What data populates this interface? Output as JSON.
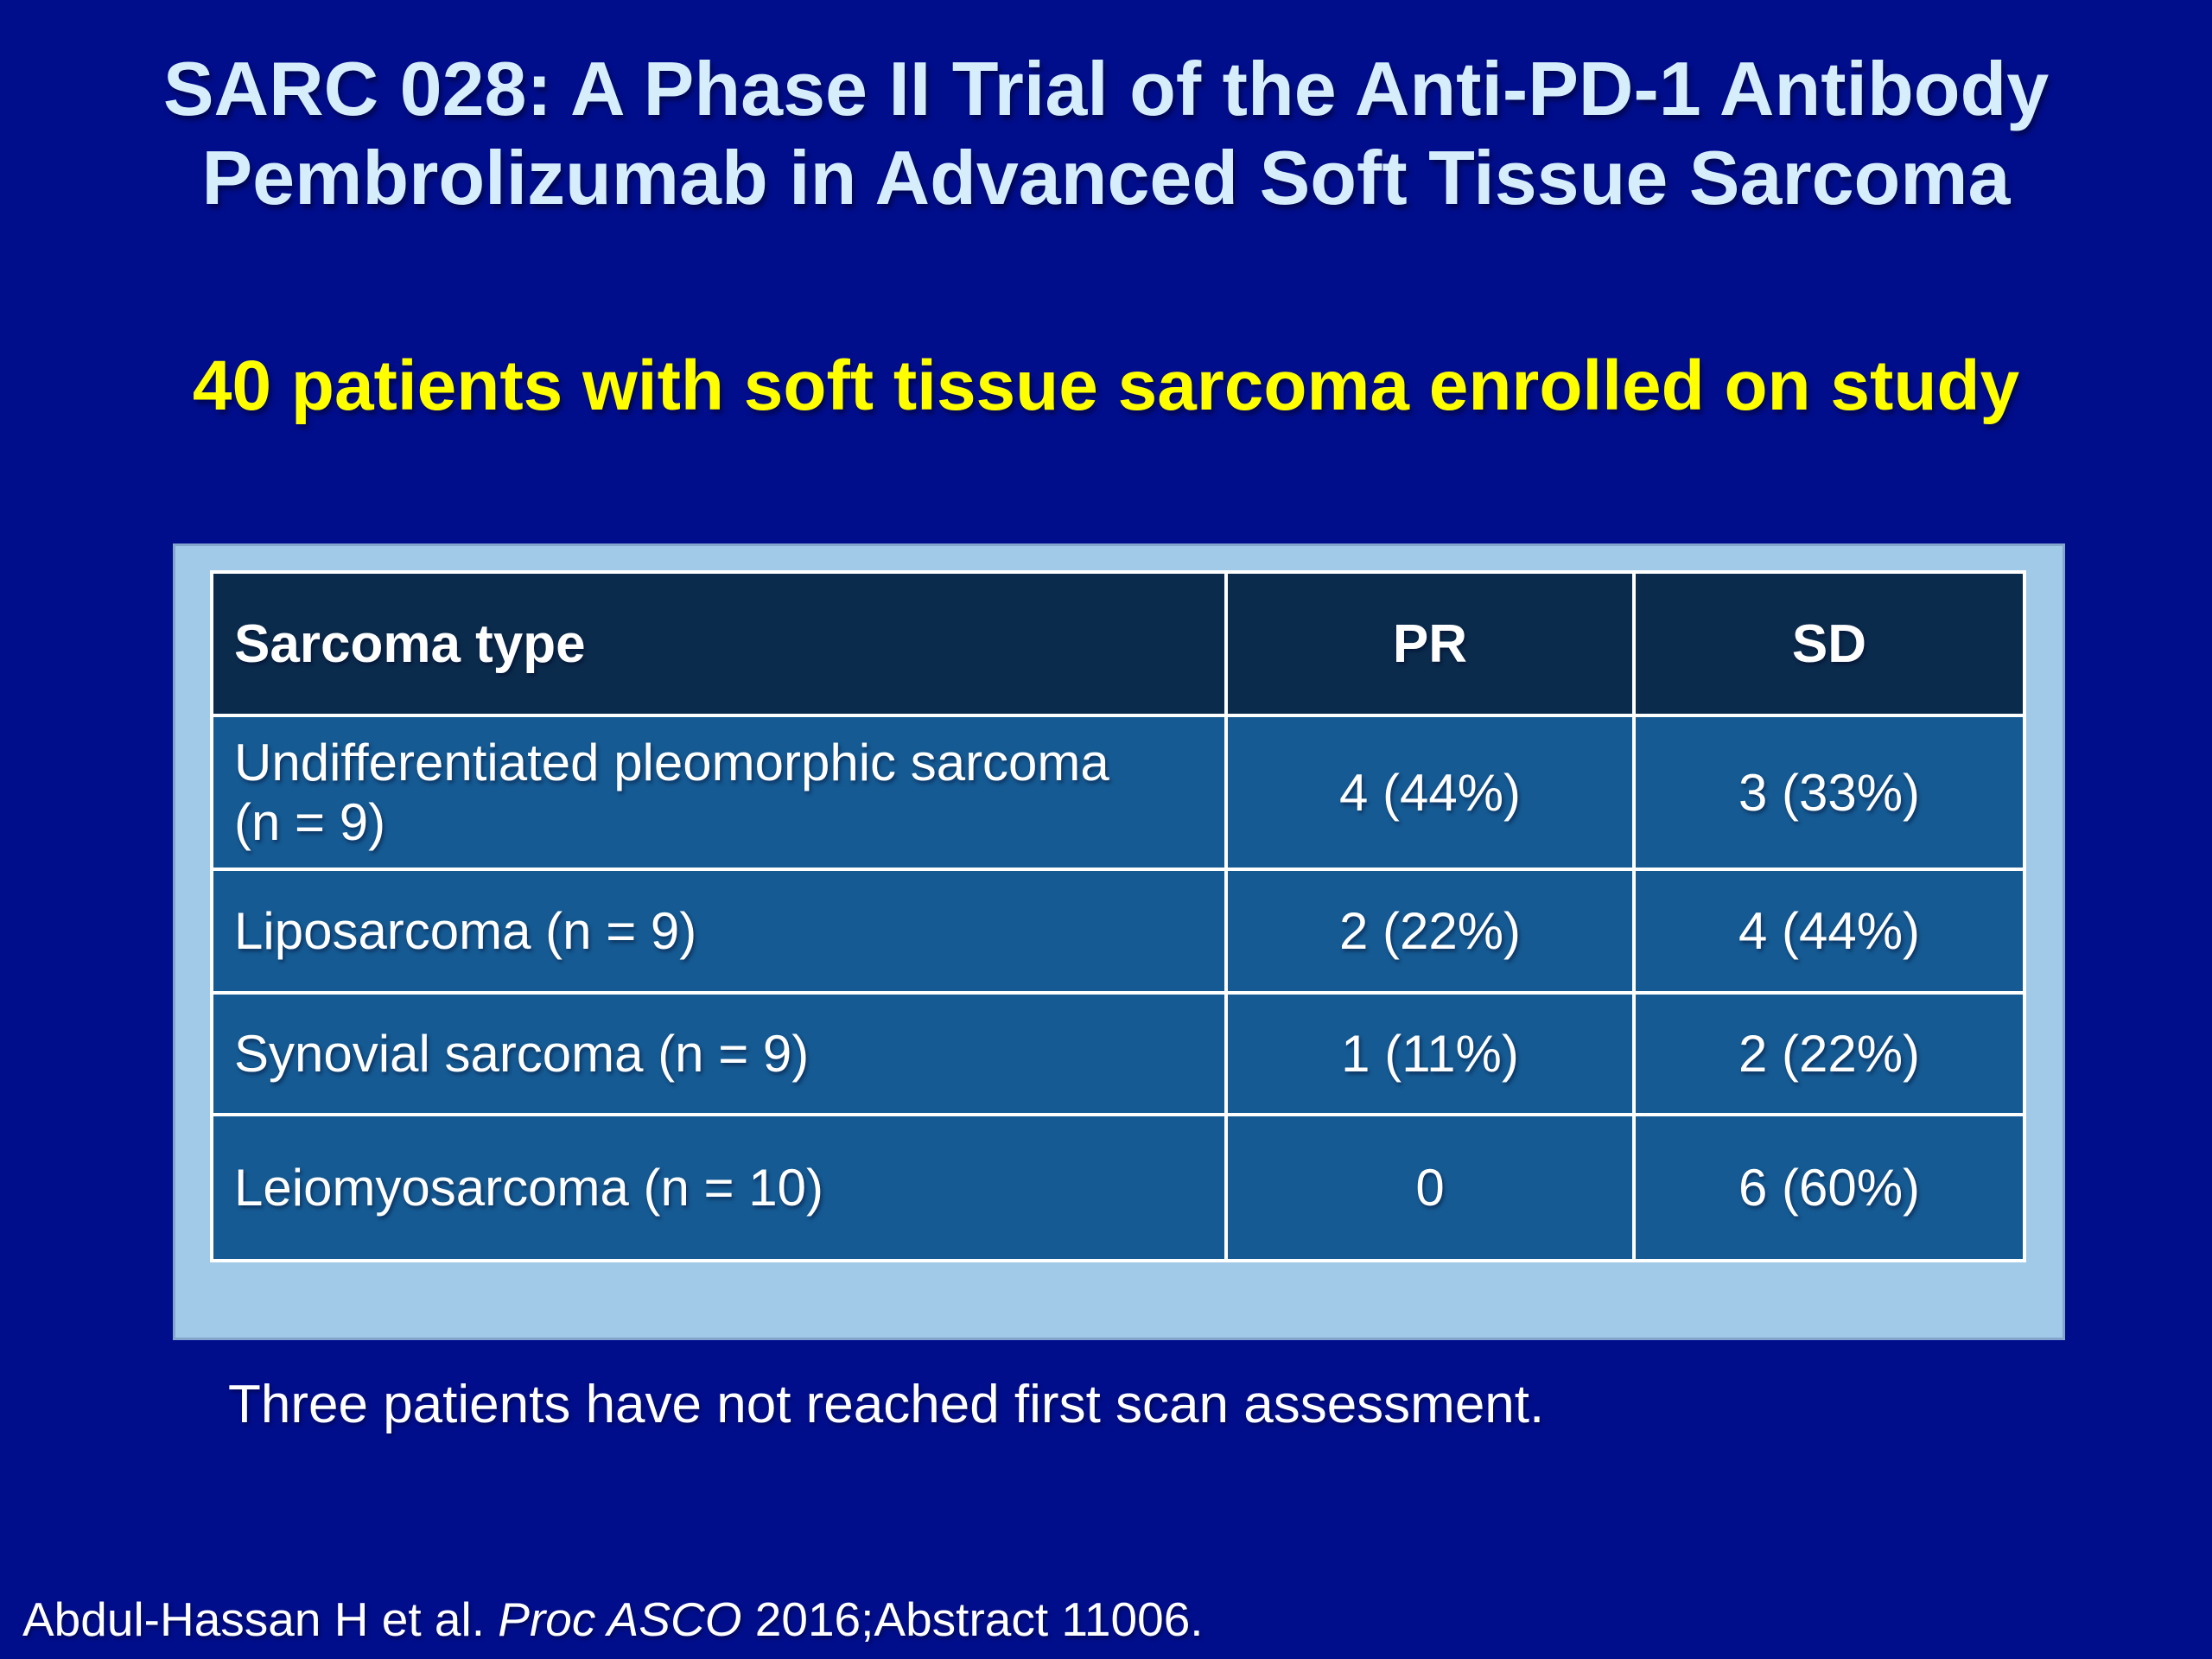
{
  "slide": {
    "title": "SARC 028: A Phase II Trial of the Anti-PD-1 Antibody\nPembrolizumab in Advanced Soft Tissue Sarcoma",
    "subtitle": "40 patients with soft tissue sarcoma enrolled on study",
    "note": "Three patients have not reached first scan assessment."
  },
  "table": {
    "headers": [
      "Sarcoma type",
      "PR",
      "SD"
    ],
    "rows": [
      {
        "sarcoma_type": "Undifferentiated pleomorphic sarcoma\n(n = 9)",
        "pr": "4 (44%)",
        "sd": "3 (33%)"
      },
      {
        "sarcoma_type": "Liposarcoma (n = 9)",
        "pr": "2 (22%)",
        "sd": "4 (44%)"
      },
      {
        "sarcoma_type": "Synovial sarcoma (n = 9)",
        "pr": "1 (11%)",
        "sd": "2 (22%)"
      },
      {
        "sarcoma_type": "Leiomyosarcoma (n = 10)",
        "pr": "0",
        "sd": "6 (60%)"
      }
    ]
  },
  "citation": {
    "prefix": "Abdul-Hassan H et al. ",
    "italic": "Proc ASCO",
    "suffix": " 2016;Abstract 11006."
  },
  "colors": {
    "background": "#000e8c",
    "title_text": "#d6eefb",
    "subtitle_text": "#ffff00",
    "table_frame": "#a1c9e8",
    "table_header_bg": "#0b2b4d",
    "table_body_bg": "#155a93",
    "gridline": "#ffffff",
    "body_text": "#ffffff"
  }
}
